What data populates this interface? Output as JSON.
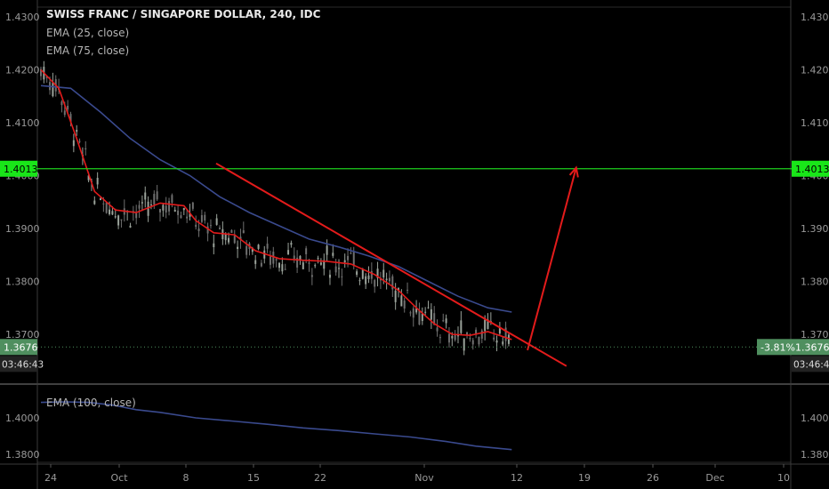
{
  "header": {
    "title": "SWISS FRANC / SINGAPORE DOLLAR, 240, IDC",
    "indicators": [
      "EMA (25, close)",
      "EMA (75, close)"
    ],
    "lower_indicator": "EMA (100, close)"
  },
  "colors": {
    "background": "#000000",
    "axis_text": "#9a9a9a",
    "candle_up": "#8a8a8a",
    "candle_down": "#8a8a8a",
    "ema25": "#e31b1b",
    "ema75": "#3a4a8e",
    "ema100": "#3a4a8e",
    "trendline": "#e31b1b",
    "projection_arrow": "#e31b1b",
    "resistance_line": "#1ecf1e",
    "price_badge": "#4f8f5f",
    "level_badge": "#19e619"
  },
  "chart_data": {
    "type": "candlestick",
    "price_axis": {
      "ticks": [
        "1.4300",
        "1.4200",
        "1.4100",
        "1.4000",
        "1.3900",
        "1.3800",
        "1.3700"
      ],
      "range": [
        1.3625,
        1.431
      ]
    },
    "time_axis": {
      "ticks": [
        "24",
        "Oct",
        "8",
        "15",
        "22",
        "Nov",
        "12",
        "19",
        "26",
        "Dec",
        "10"
      ]
    },
    "current_price": "1.3676",
    "countdown": "03:46:43",
    "change_percent": "-3.81%",
    "horizontal_level": {
      "label": "1.4013",
      "value": 1.4013
    },
    "trendline": {
      "from": {
        "date": "Oct 11",
        "price": 1.4023
      },
      "to": {
        "date": "Nov 16",
        "price": 1.364
      }
    },
    "projection_arrow": {
      "from": {
        "date": "Nov 12",
        "price": 1.367
      },
      "to": {
        "date": "Nov 17",
        "price": 1.4015
      }
    },
    "ema25": [
      [
        0,
        1.42
      ],
      [
        6,
        1.4165
      ],
      [
        12,
        1.407
      ],
      [
        18,
        1.397
      ],
      [
        25,
        1.3935
      ],
      [
        32,
        1.393
      ],
      [
        40,
        1.3948
      ],
      [
        48,
        1.3943
      ],
      [
        52,
        1.3915
      ],
      [
        58,
        1.3892
      ],
      [
        65,
        1.3888
      ],
      [
        72,
        1.3858
      ],
      [
        80,
        1.3843
      ],
      [
        88,
        1.384
      ],
      [
        96,
        1.3838
      ],
      [
        104,
        1.3833
      ],
      [
        112,
        1.3813
      ],
      [
        120,
        1.3783
      ],
      [
        126,
        1.375
      ],
      [
        132,
        1.372
      ],
      [
        138,
        1.37
      ],
      [
        144,
        1.3698
      ],
      [
        150,
        1.3705
      ],
      [
        158,
        1.369
      ]
    ],
    "ema75": [
      [
        0,
        1.417
      ],
      [
        10,
        1.4165
      ],
      [
        20,
        1.412
      ],
      [
        30,
        1.407
      ],
      [
        40,
        1.403
      ],
      [
        50,
        1.4
      ],
      [
        60,
        1.396
      ],
      [
        70,
        1.393
      ],
      [
        80,
        1.3905
      ],
      [
        90,
        1.388
      ],
      [
        100,
        1.3865
      ],
      [
        110,
        1.3848
      ],
      [
        120,
        1.3828
      ],
      [
        130,
        1.38
      ],
      [
        140,
        1.3772
      ],
      [
        150,
        1.375
      ],
      [
        158,
        1.3742
      ]
    ],
    "lower_panel": {
      "price_axis": {
        "ticks": [
          "1.4000",
          "1.3800"
        ],
        "range": [
          1.375,
          1.412
        ]
      },
      "ema100": [
        [
          0,
          1.4085
        ],
        [
          8,
          1.4088
        ],
        [
          16,
          1.4085
        ],
        [
          24,
          1.407
        ],
        [
          32,
          1.4045
        ],
        [
          40,
          1.403
        ],
        [
          52,
          1.4
        ],
        [
          64,
          1.3983
        ],
        [
          76,
          1.3965
        ],
        [
          88,
          1.3945
        ],
        [
          100,
          1.393
        ],
        [
          112,
          1.3912
        ],
        [
          124,
          1.3895
        ],
        [
          136,
          1.387
        ],
        [
          146,
          1.3845
        ],
        [
          158,
          1.3826
        ]
      ]
    }
  }
}
